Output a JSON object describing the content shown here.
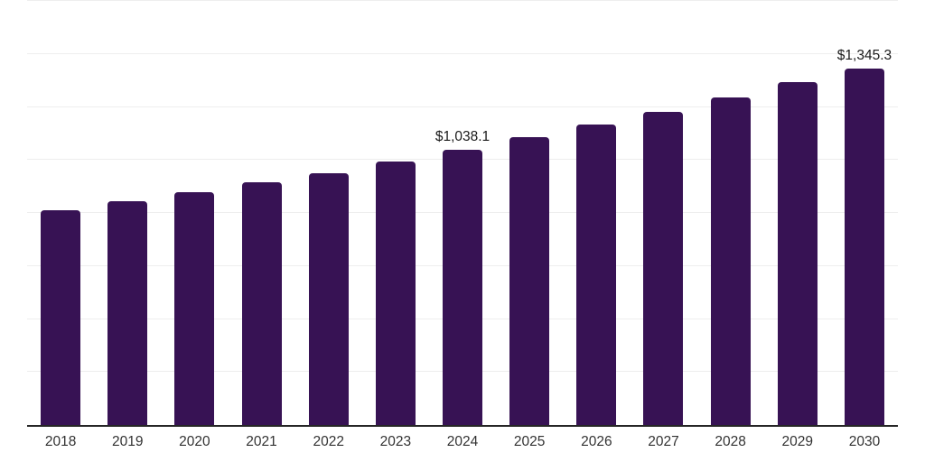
{
  "chart_data": {
    "type": "bar",
    "title": "",
    "xlabel": "",
    "ylabel": "",
    "categories": [
      "2018",
      "2019",
      "2020",
      "2021",
      "2022",
      "2023",
      "2024",
      "2025",
      "2026",
      "2027",
      "2028",
      "2029",
      "2030"
    ],
    "values": [
      810,
      846,
      880,
      915,
      951,
      993,
      1038.1,
      1085,
      1132,
      1181,
      1236,
      1293,
      1345.3
    ],
    "annotations": {
      "2024": "$1,038.1",
      "2030": "$1,345.3"
    },
    "ylim": [
      0,
      1600
    ],
    "y_gridline_interval": 200,
    "grid": true,
    "y_axis_tick_labels_visible": false,
    "legend": false,
    "colors": {
      "bar": "#371254",
      "gridline": "#eeeeee",
      "axis_line": "#262626",
      "tick_label": "#333333",
      "value_label": "#1a1a1a"
    }
  }
}
